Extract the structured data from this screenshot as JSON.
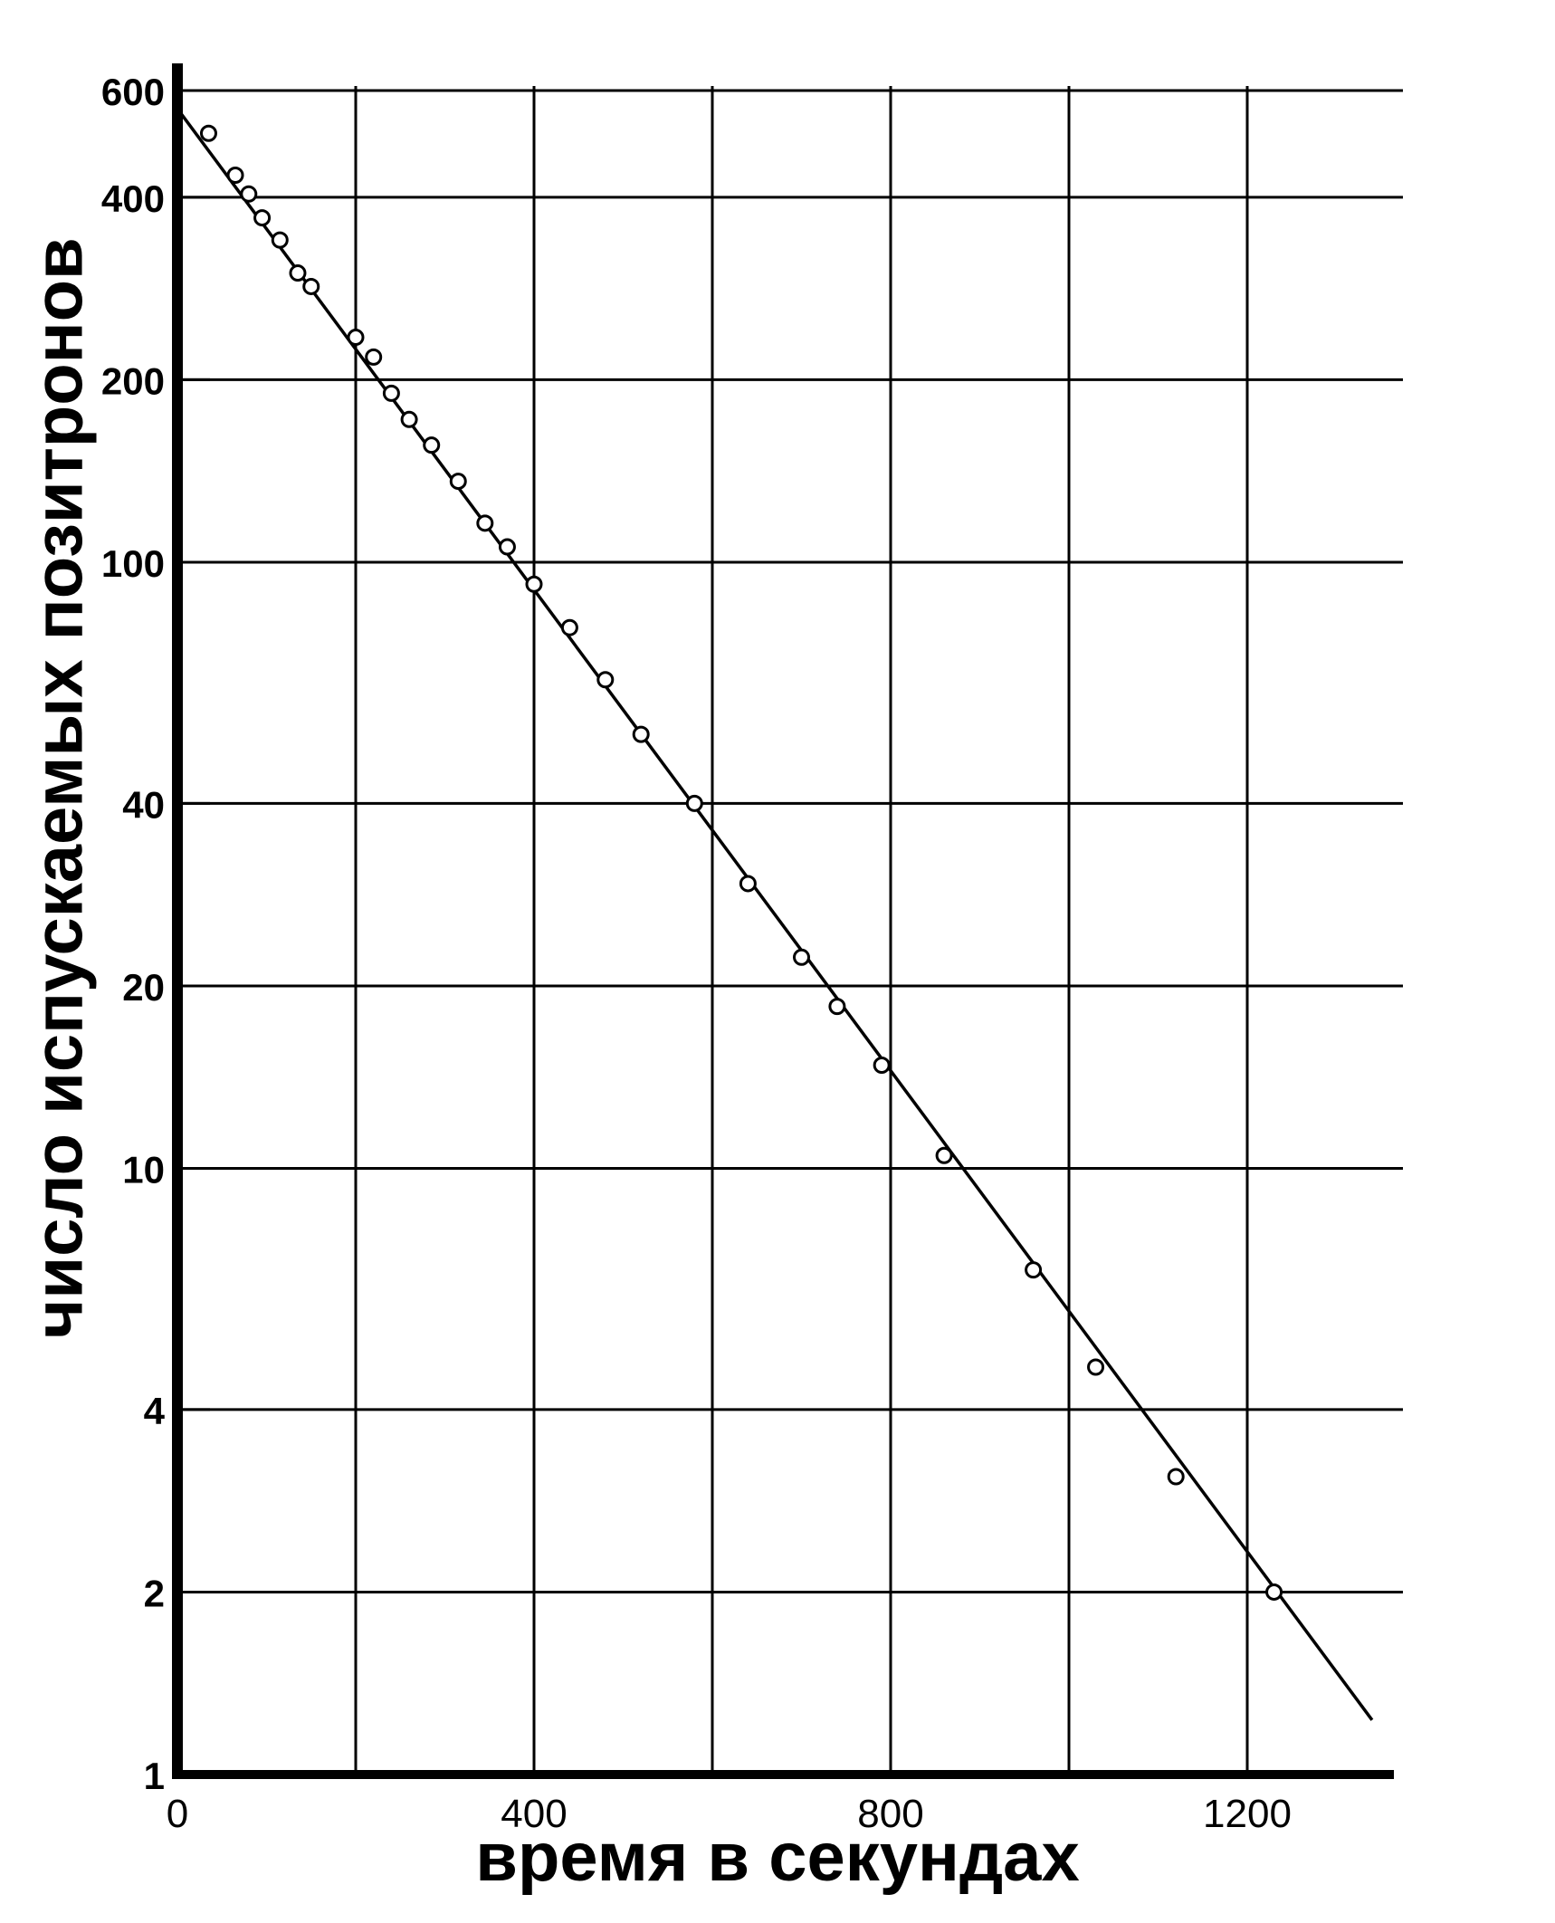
{
  "chart_data": {
    "type": "scatter",
    "title": "",
    "xlabel": "время в секундах",
    "ylabel": "число испускаемых позитронов",
    "x_scale": "linear",
    "y_scale": "log",
    "xlim": [
      0,
      1360
    ],
    "ylim": [
      1,
      600
    ],
    "x_ticks": [
      0,
      400,
      800,
      1200
    ],
    "x_tick_labels": [
      "0",
      "400",
      "800",
      "1200"
    ],
    "y_ticks": [
      1,
      2,
      4,
      10,
      20,
      40,
      100,
      200,
      400,
      600
    ],
    "y_tick_labels": [
      "1",
      "2",
      "4",
      "10",
      "20",
      "40",
      "100",
      "200",
      "400",
      "600"
    ],
    "grid": true,
    "x_gridlines": [
      200,
      400,
      600,
      800,
      1000,
      1200
    ],
    "y_gridlines": [
      2,
      4,
      10,
      20,
      40,
      100,
      200,
      400,
      600
    ],
    "fit_line": {
      "x": [
        0,
        1340
      ],
      "y": [
        560,
        1.23
      ]
    },
    "points": {
      "x": [
        35,
        65,
        80,
        95,
        115,
        135,
        150,
        200,
        220,
        240,
        260,
        285,
        315,
        345,
        370,
        400,
        440,
        480,
        520,
        580,
        640,
        700,
        740,
        790,
        860,
        960,
        1030,
        1120,
        1230
      ],
      "y": [
        510,
        435,
        405,
        370,
        340,
        300,
        285,
        235,
        218,
        190,
        172,
        156,
        136,
        116,
        106,
        92,
        78,
        64,
        52,
        40,
        29.5,
        22.3,
        18.5,
        14.8,
        10.5,
        6.8,
        4.7,
        3.1,
        2.0
      ]
    },
    "marker": "open-circle",
    "line_color": "#000000",
    "grid_color": "#000000"
  }
}
